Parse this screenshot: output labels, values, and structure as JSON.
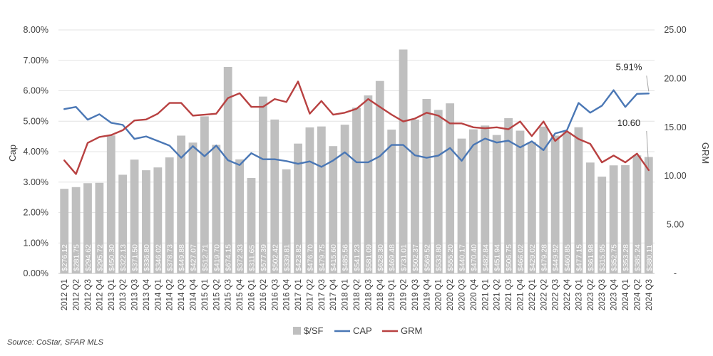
{
  "chart_data": {
    "type": "bar+line",
    "title": "",
    "categories": [
      "2012 Q1",
      "2012 Q2",
      "2012 Q3",
      "2012 Q4",
      "2013 Q1",
      "2013 Q2",
      "2013 Q3",
      "2013 Q4",
      "2014 Q1",
      "2014 Q2",
      "2014 Q3",
      "2014 Q4",
      "2015 Q1",
      "2015 Q2",
      "2015 Q3",
      "2015 Q4",
      "2016 Q1",
      "2016 Q2",
      "2016 Q3",
      "2016 Q4",
      "2017 Q1",
      "2017 Q2",
      "2017 Q3",
      "2017 Q4",
      "2018 Q1",
      "2018 Q2",
      "2018 Q3",
      "2018 Q4",
      "2019 Q1",
      "2019 Q2",
      "2019 Q3",
      "2019 Q4",
      "2020 Q1",
      "2020 Q2",
      "2020 Q3",
      "2020 Q4",
      "2021 Q1",
      "2021 Q2",
      "2021 Q3",
      "2021 Q4",
      "2022 Q1",
      "2022 Q2",
      "2022 Q3",
      "2022 Q4",
      "2023 Q1",
      "2023 Q2",
      "2023 Q3",
      "2023 Q4",
      "2024 Q1",
      "2024 Q2",
      "2024 Q3"
    ],
    "series": [
      {
        "name": "$/SF",
        "kind": "bar",
        "axis": "none",
        "labels": [
          "$276.12",
          "$281.75",
          "$294.62",
          "$295.72",
          "$450.30",
          "$322.13",
          "$371.50",
          "$336.80",
          "$346.02",
          "$378.73",
          "$449.88",
          "$427.07",
          "$512.71",
          "$419.70",
          "$674.15",
          "$372.33",
          "$311.65",
          "$577.39",
          "$502.42",
          "$339.81",
          "$423.82",
          "$476.70",
          "$479.75",
          "$415.60",
          "$485.56",
          "$541.23",
          "$581.09",
          "$628.30",
          "$469.48",
          "$731.01",
          "$502.37",
          "$569.52",
          "$533.80",
          "$555.20",
          "$440.17",
          "$470.40",
          "$482.84",
          "$451.94",
          "$506.75",
          "$466.02",
          "$429.02",
          "$479.28",
          "$449.92",
          "$460.85",
          "$477.15",
          "$361.98",
          "$315.95",
          "$352.75",
          "$353.28",
          "$385.24",
          "$380.11"
        ],
        "values": [
          276.12,
          281.75,
          294.62,
          295.72,
          450.3,
          322.13,
          371.5,
          336.8,
          346.02,
          378.73,
          449.88,
          427.07,
          512.71,
          419.7,
          674.15,
          372.33,
          311.65,
          577.39,
          502.42,
          339.81,
          423.82,
          476.7,
          479.75,
          415.6,
          485.56,
          541.23,
          581.09,
          628.3,
          469.48,
          731.01,
          502.37,
          569.52,
          533.8,
          555.2,
          440.17,
          470.4,
          482.84,
          451.94,
          506.75,
          466.02,
          429.02,
          479.28,
          449.92,
          460.85,
          477.15,
          361.98,
          315.95,
          352.75,
          353.28,
          385.24,
          380.11
        ],
        "color": "#BFBFBF"
      },
      {
        "name": "CAP",
        "kind": "line",
        "axis": "left",
        "values": [
          5.4,
          5.47,
          5.05,
          5.23,
          4.95,
          4.88,
          4.42,
          4.5,
          4.35,
          4.2,
          3.8,
          4.18,
          3.85,
          4.2,
          3.72,
          3.56,
          3.95,
          3.75,
          3.75,
          3.69,
          3.6,
          3.68,
          3.5,
          3.71,
          3.98,
          3.65,
          3.65,
          3.85,
          4.22,
          4.22,
          3.88,
          3.8,
          3.87,
          4.12,
          3.7,
          4.22,
          4.43,
          4.3,
          4.36,
          4.14,
          4.34,
          4.05,
          4.6,
          4.7,
          5.6,
          5.28,
          5.51,
          6.02,
          5.47,
          5.9,
          5.91
        ],
        "color": "#4A77B5"
      },
      {
        "name": "GRM",
        "kind": "line",
        "axis": "right",
        "values": [
          11.6,
          10.2,
          13.4,
          14.0,
          14.2,
          14.7,
          15.7,
          15.8,
          16.4,
          17.5,
          17.5,
          16.2,
          16.3,
          16.4,
          18.0,
          18.5,
          17.1,
          17.1,
          17.9,
          17.6,
          19.7,
          16.4,
          17.7,
          16.3,
          16.5,
          16.9,
          17.9,
          17.1,
          16.3,
          15.6,
          15.9,
          16.5,
          16.2,
          15.4,
          15.4,
          15.0,
          14.9,
          15.0,
          14.8,
          15.6,
          14.1,
          15.6,
          13.6,
          14.6,
          13.8,
          13.3,
          11.4,
          12.1,
          11.4,
          12.3,
          10.6
        ],
        "color": "#B84141"
      }
    ],
    "left_axis": {
      "label": "Cap",
      "range": [
        0,
        8
      ],
      "step": 1,
      "tick_labels": [
        "0.00%",
        "1.00%",
        "2.00%",
        "3.00%",
        "4.00%",
        "5.00%",
        "6.00%",
        "7.00%",
        "8.00%"
      ]
    },
    "right_axis": {
      "label": "GRM",
      "range": [
        0,
        25
      ],
      "step": 5,
      "tick_labels": [
        "-",
        "5.00",
        "10.00",
        "15.00",
        "20.00",
        "25.00"
      ]
    },
    "bar_scale_max": 795,
    "annotations": [
      {
        "text": "5.91%",
        "series": "CAP",
        "index": 50
      },
      {
        "text": "10.60",
        "series": "GRM",
        "index": 50
      }
    ],
    "legend": [
      "$/SF",
      "CAP",
      "GRM"
    ],
    "legend_position": "bottom-center",
    "grid": true
  },
  "source_note": "Source: CoStar, SFAR MLS"
}
